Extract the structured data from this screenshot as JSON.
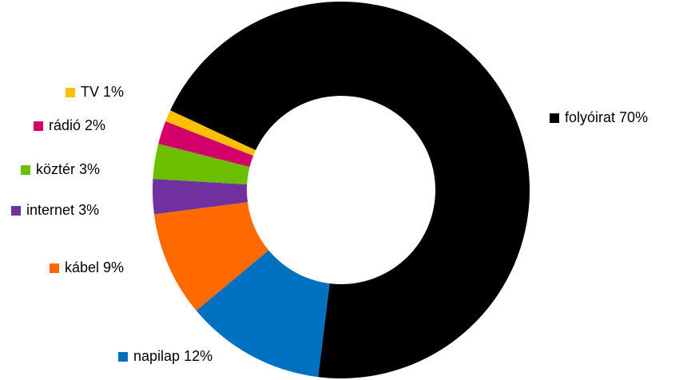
{
  "chart_data": {
    "type": "donut",
    "categories": [
      "folyóirat",
      "napilap",
      "kábel",
      "internet",
      "köztér",
      "rádió",
      "TV"
    ],
    "values": [
      70,
      12,
      9,
      3,
      3,
      2,
      1
    ],
    "value_labels": [
      "70%",
      "12%",
      "9%",
      "3%",
      "3%",
      "2%",
      "1%"
    ],
    "colors": [
      "#000000",
      "#0070c0",
      "#ff6a00",
      "#7030a0",
      "#6cbf00",
      "#d4006a",
      "#ffc000"
    ]
  }
}
